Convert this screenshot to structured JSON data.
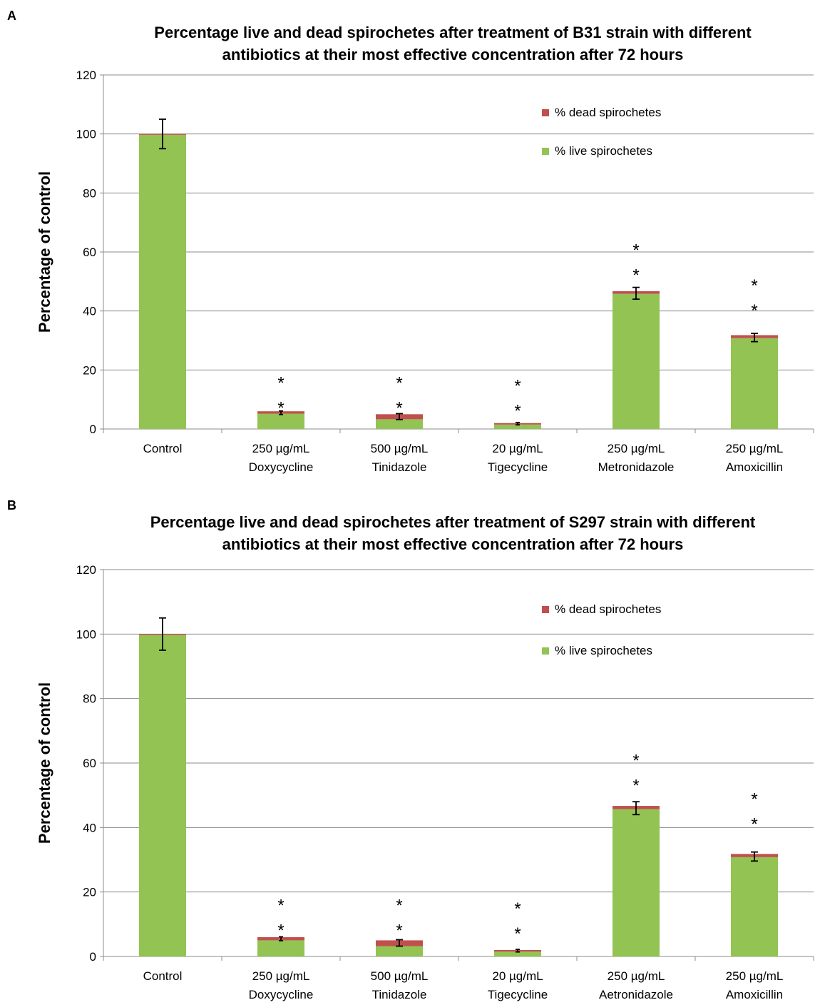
{
  "chart_data": [
    {
      "panel": "A",
      "type": "bar",
      "stacked": true,
      "title_line1": "Percentage live and dead spirochetes after treatment of B31 strain with different",
      "title_line2": "antibiotics at their most effective concentration after 72 hours",
      "ylabel": "Percentage of control",
      "xlabel": "",
      "ylim": [
        0,
        120
      ],
      "yticks": [
        0,
        20,
        40,
        60,
        80,
        100,
        120
      ],
      "grid": true,
      "legend_position": "top-right",
      "categories": [
        [
          "Control"
        ],
        [
          "250 µg/mL",
          "Doxycycline"
        ],
        [
          "500 µg/mL",
          "Tinidazole"
        ],
        [
          "20 µg/mL",
          "Tigecycline"
        ],
        [
          "250 µg/mL",
          "Metronidazole"
        ],
        [
          "250 µg/mL",
          "Amoxicillin"
        ]
      ],
      "series": [
        {
          "name": "% live spirochetes",
          "color": "#92c353",
          "values": [
            99.7,
            5.2,
            3.3,
            1.5,
            45.8,
            30.8
          ]
        },
        {
          "name": "% dead spirochetes",
          "color": "#c0504d",
          "values": [
            0.3,
            0.8,
            1.7,
            0.5,
            0.9,
            1.0
          ]
        }
      ],
      "error_bars": {
        "center": [
          100,
          5.5,
          4.2,
          1.8,
          46.0,
          31.0
        ],
        "err": [
          5.0,
          0.6,
          1.0,
          0.4,
          2.0,
          1.4
        ]
      },
      "significance_marks": [
        "",
        "**",
        "**",
        "**",
        "**",
        "**"
      ],
      "significance_tops": [
        null,
        18,
        18,
        17,
        63,
        51
      ]
    },
    {
      "panel": "B",
      "type": "bar",
      "stacked": true,
      "title_line1": "Percentage live and dead spirochetes after treatment of S297 strain with different",
      "title_line2": "antibiotics at their most effective concentration after 72 hours",
      "ylabel": "Percentage of control",
      "xlabel": "",
      "ylim": [
        0,
        120
      ],
      "yticks": [
        0,
        20,
        40,
        60,
        80,
        100,
        120
      ],
      "grid": true,
      "legend_position": "top-right",
      "categories": [
        [
          "Control"
        ],
        [
          "250 µg/mL",
          "Doxycycline"
        ],
        [
          "500 µg/mL",
          "Tinidazole"
        ],
        [
          "20 µg/mL",
          "Tigecycline"
        ],
        [
          "250 µg/mL",
          "Aetronidazole"
        ],
        [
          "250 µg/mL",
          "Amoxicillin"
        ]
      ],
      "series": [
        {
          "name": "% live spirochetes",
          "color": "#92c353",
          "values": [
            99.7,
            5.0,
            3.2,
            1.5,
            45.7,
            30.8
          ]
        },
        {
          "name": "% dead spirochetes",
          "color": "#c0504d",
          "values": [
            0.3,
            1.0,
            1.8,
            0.5,
            1.0,
            1.0
          ]
        }
      ],
      "error_bars": {
        "center": [
          100,
          5.5,
          4.2,
          1.8,
          46.0,
          31.0
        ],
        "err": [
          5.0,
          0.6,
          1.0,
          0.4,
          2.0,
          1.4
        ]
      },
      "significance_marks": [
        "",
        "**",
        "**",
        "**",
        "**",
        "**"
      ],
      "significance_tops": [
        null,
        18,
        18,
        17,
        63,
        51
      ]
    }
  ]
}
